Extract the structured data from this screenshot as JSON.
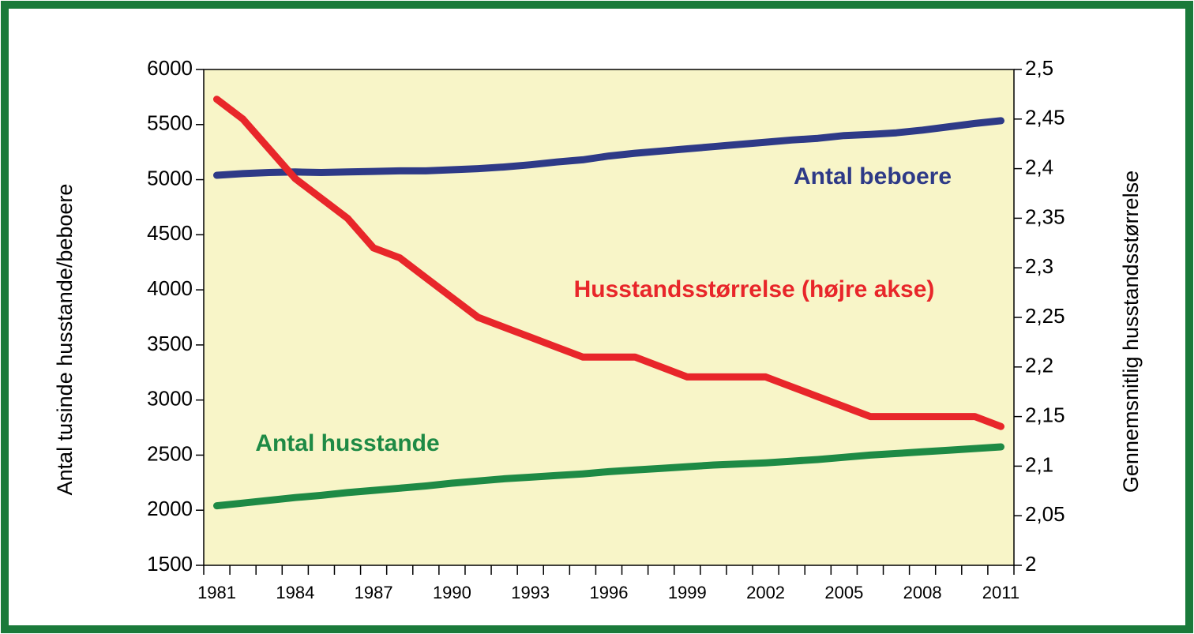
{
  "chart_data": {
    "type": "line",
    "y_label": "Antal tusinde husstande/beboere",
    "y2_label": "Gennemsnitlig husstandsstørrelse",
    "categories": [
      "1981",
      null,
      null,
      "1984",
      null,
      null,
      "1987",
      null,
      null,
      "1990",
      null,
      null,
      "1993",
      null,
      null,
      "1996",
      null,
      null,
      "1999",
      null,
      null,
      "2002",
      null,
      null,
      "2005",
      null,
      null,
      "2008",
      null,
      null,
      "2011"
    ],
    "series": [
      {
        "name": "Antal beboere",
        "color": "#2e3a87",
        "axis": "y",
        "values": [
          5040,
          5055,
          5065,
          5070,
          5065,
          5070,
          5075,
          5080,
          5080,
          5090,
          5100,
          5115,
          5135,
          5160,
          5180,
          5215,
          5240,
          5260,
          5280,
          5300,
          5320,
          5340,
          5360,
          5375,
          5400,
          5410,
          5425,
          5450,
          5480,
          5510,
          5535
        ]
      },
      {
        "name": "Husstandsstørrelse (højre akse)",
        "color": "#e8262a",
        "axis": "y2",
        "values": [
          2.47,
          2.45,
          2.42,
          2.39,
          2.37,
          2.35,
          2.32,
          2.31,
          2.29,
          2.27,
          2.25,
          2.24,
          2.23,
          2.22,
          2.21,
          2.21,
          2.21,
          2.2,
          2.19,
          2.19,
          2.19,
          2.19,
          2.18,
          2.17,
          2.16,
          2.15,
          2.15,
          2.15,
          2.15,
          2.15,
          2.14
        ]
      },
      {
        "name": "Antal husstande",
        "color": "#1e8a45",
        "axis": "y",
        "values": [
          2040,
          2065,
          2090,
          2115,
          2135,
          2160,
          2180,
          2200,
          2220,
          2245,
          2265,
          2285,
          2300,
          2315,
          2330,
          2350,
          2365,
          2380,
          2395,
          2410,
          2420,
          2430,
          2445,
          2460,
          2480,
          2500,
          2515,
          2530,
          2545,
          2560,
          2575
        ]
      }
    ],
    "ylim": [
      1500,
      6000
    ],
    "yticks": [
      1500,
      2000,
      2500,
      3000,
      3500,
      4000,
      4500,
      5000,
      5500,
      6000
    ],
    "y2lim": [
      2,
      2.5
    ],
    "y2ticks": [
      2,
      {
        "value": 2.05,
        "label": "2,05"
      },
      {
        "value": 2.1,
        "label": "2,1"
      },
      {
        "value": 2.15,
        "label": "2,15"
      },
      {
        "value": 2.2,
        "label": "2,2"
      },
      {
        "value": 2.25,
        "label": "2,25"
      },
      {
        "value": 2.3,
        "label": "2,3"
      },
      {
        "value": 2.35,
        "label": "2,35"
      },
      {
        "value": 2.4,
        "label": "2,4"
      },
      {
        "value": 2.45,
        "label": "2,45"
      },
      {
        "value": 2.5,
        "label": "2,5"
      }
    ]
  }
}
